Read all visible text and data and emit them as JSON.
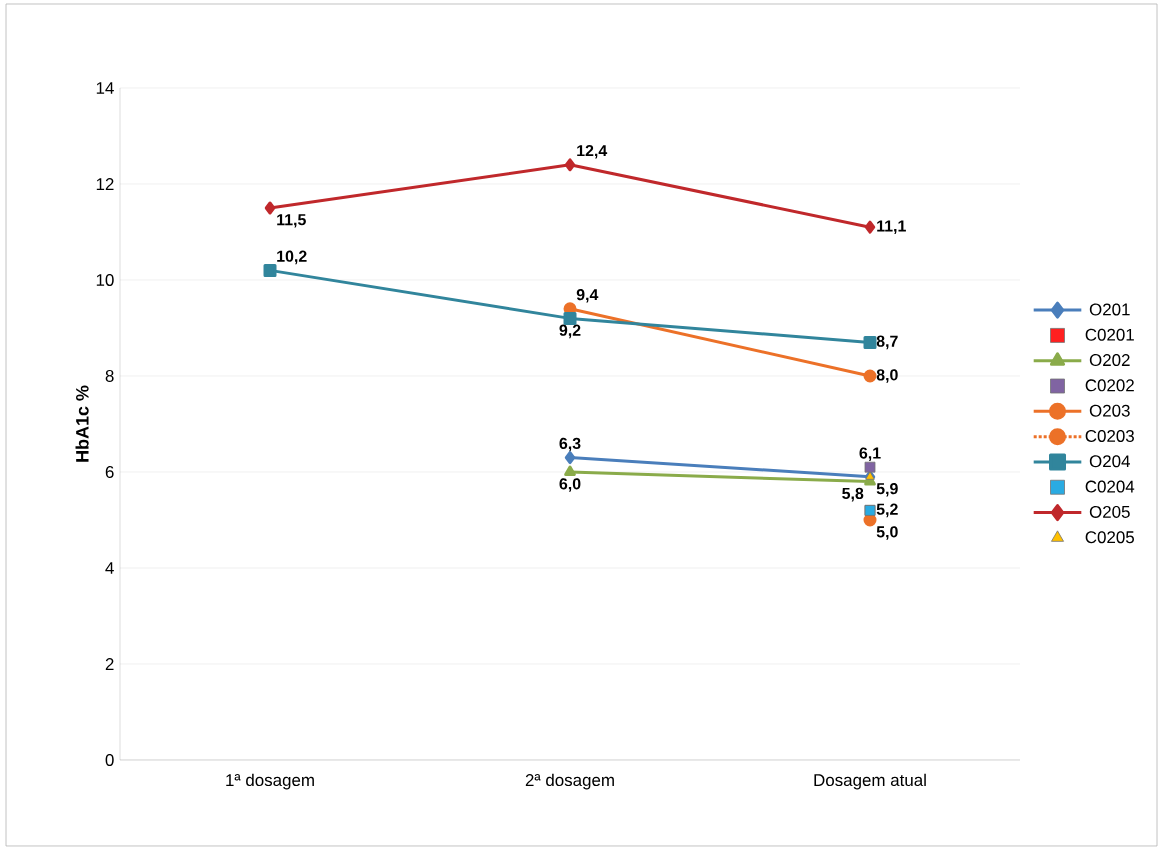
{
  "chart_data": {
    "type": "line",
    "ylabel": "HbA1c %",
    "categories": [
      "1ª dosagem",
      "2ª dosagem",
      "Dosagem atual"
    ],
    "ylim": [
      0,
      14
    ],
    "yticks": [
      0,
      2,
      4,
      6,
      8,
      10,
      12,
      14
    ],
    "grid": "y",
    "legend": "right",
    "series": [
      {
        "name": "O201",
        "color": "#4a7ebb",
        "marker": "diamond",
        "values": [
          null,
          6.3,
          5.9
        ],
        "value_labels": [
          null,
          "6,3",
          "5,9"
        ]
      },
      {
        "name": "C0201",
        "type": "scatter",
        "color": "#ff2020",
        "marker": "square",
        "values": [
          null,
          null,
          5.2
        ],
        "value_labels": [
          null,
          null,
          "5,2"
        ]
      },
      {
        "name": "O202",
        "color": "#8aab4a",
        "marker": "triangle",
        "values": [
          null,
          6.0,
          5.8
        ],
        "value_labels": [
          null,
          "6,0",
          "5,8"
        ]
      },
      {
        "name": "C0202",
        "type": "scatter",
        "color": "#8064a2",
        "marker": "square",
        "values": [
          null,
          null,
          6.1
        ],
        "value_labels": [
          null,
          null,
          "6,1"
        ]
      },
      {
        "name": "O203",
        "color": "#ec7128",
        "marker": "circle",
        "values": [
          null,
          9.4,
          8.0
        ],
        "value_labels": [
          null,
          "9,4",
          "8,0"
        ]
      },
      {
        "name": "C0203",
        "line_style": "dotted",
        "color": "#ec7128",
        "marker": "circle",
        "values": [
          null,
          null,
          5.0
        ],
        "value_labels": [
          null,
          null,
          "5,0"
        ]
      },
      {
        "name": "O204",
        "color": "#31859c",
        "marker": "square",
        "values": [
          10.2,
          9.2,
          8.7
        ],
        "value_labels": [
          "10,2",
          "9,2",
          "8,7"
        ]
      },
      {
        "name": "C0204",
        "type": "scatter",
        "color": "#2aabe2",
        "marker": "square",
        "values": [
          null,
          null,
          5.2
        ],
        "value_labels": [
          null,
          null,
          null
        ]
      },
      {
        "name": "O205",
        "color": "#c0282b",
        "marker": "diamond",
        "values": [
          11.5,
          12.4,
          11.1
        ],
        "value_labels": [
          "11,5",
          "12,4",
          "11,1"
        ]
      },
      {
        "name": "C0205",
        "type": "scatter",
        "color": "#ffc000",
        "marker": "triangle",
        "values": [
          null,
          null,
          5.9
        ],
        "value_labels": [
          null,
          null,
          null
        ]
      }
    ]
  }
}
